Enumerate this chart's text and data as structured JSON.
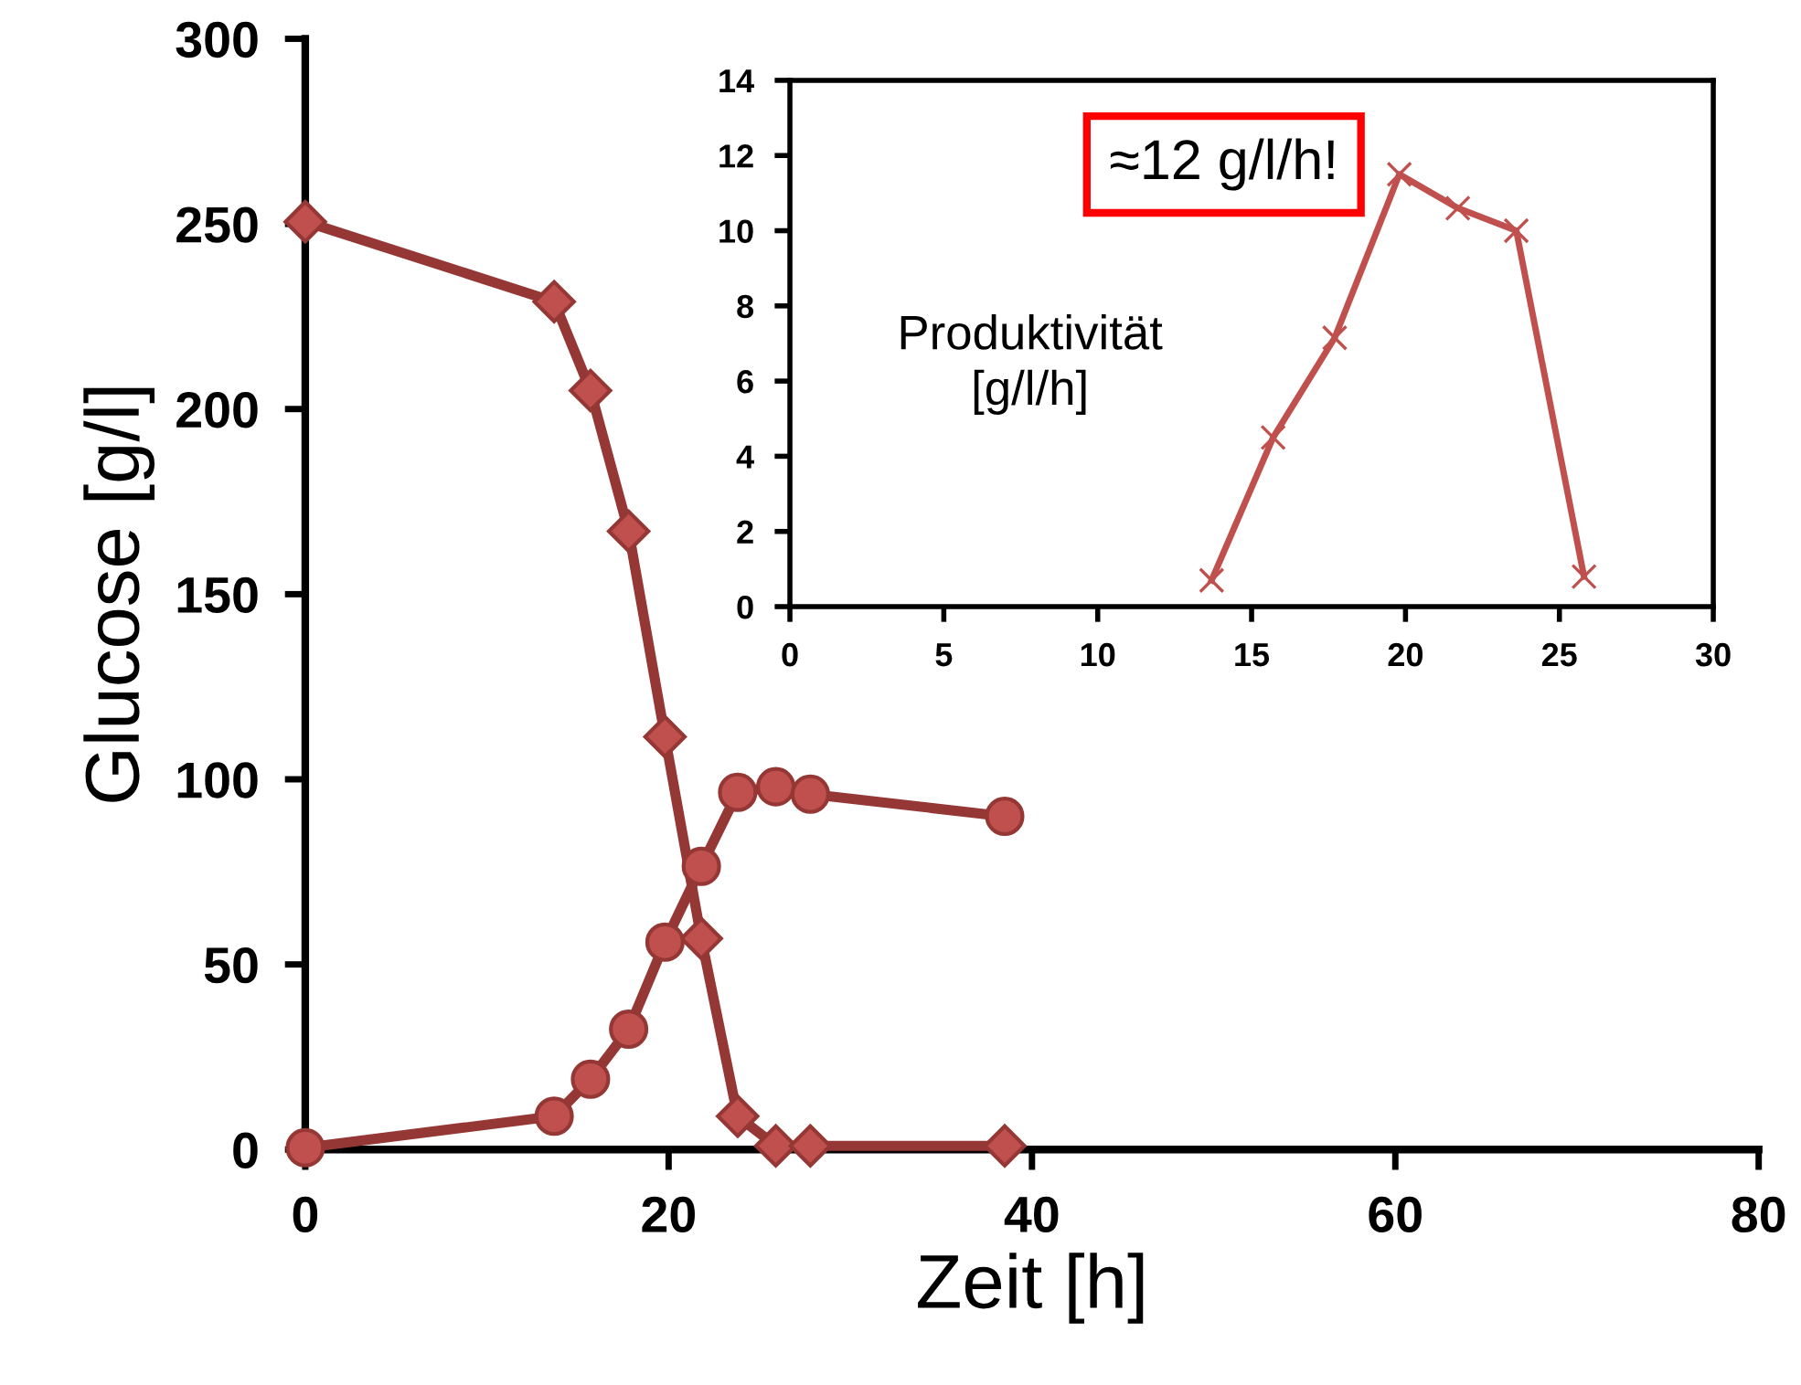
{
  "chart_data": [
    {
      "type": "line",
      "xlabel": "Zeit [h]",
      "ylabel": "Glucose [g/l]",
      "xlim": [
        0,
        80
      ],
      "xticks": [
        0,
        20,
        40,
        60,
        80
      ],
      "ylim": [
        0,
        300
      ],
      "yticks": [
        0,
        50,
        100,
        150,
        200,
        250,
        300
      ],
      "grid": false,
      "legend": false,
      "line_style": "solid",
      "series": [
        {
          "color": "#953735",
          "marker": "diamond",
          "x": [
            0,
            13.7,
            15.7,
            17.8,
            19.8,
            21.8,
            23.8,
            25.9,
            27.8,
            38.5
          ],
          "values": [
            250.6,
            229,
            205,
            167,
            111.5,
            57,
            9,
            1,
            1,
            1
          ]
        },
        {
          "color": "#953735",
          "marker": "circle",
          "x": [
            0,
            13.7,
            15.7,
            17.8,
            19.8,
            21.8,
            23.8,
            25.9,
            27.8,
            38.5
          ],
          "values": [
            0.5,
            9,
            19,
            32.5,
            56,
            76.5,
            96.5,
            98,
            96,
            90
          ]
        }
      ]
    },
    {
      "type": "line",
      "xlim": [
        0,
        30
      ],
      "xticks": [
        0,
        5,
        10,
        15,
        20,
        25,
        30
      ],
      "ylim": [
        0,
        14
      ],
      "yticks": [
        0,
        2,
        4,
        6,
        8,
        10,
        12,
        14
      ],
      "grid": false,
      "legend": false,
      "line_style": "solid",
      "annotations": [
        "≈12 g/l/h!",
        "Produktivität\n[g/l/h]"
      ],
      "series": [
        {
          "color": "#c0504d",
          "marker": "cross",
          "x": [
            13.7,
            15.7,
            17.7,
            19.8,
            21.7,
            23.6,
            25.8
          ],
          "values": [
            0.7,
            4.5,
            7.15,
            11.5,
            10.6,
            10.0,
            0.8
          ]
        }
      ]
    }
  ]
}
